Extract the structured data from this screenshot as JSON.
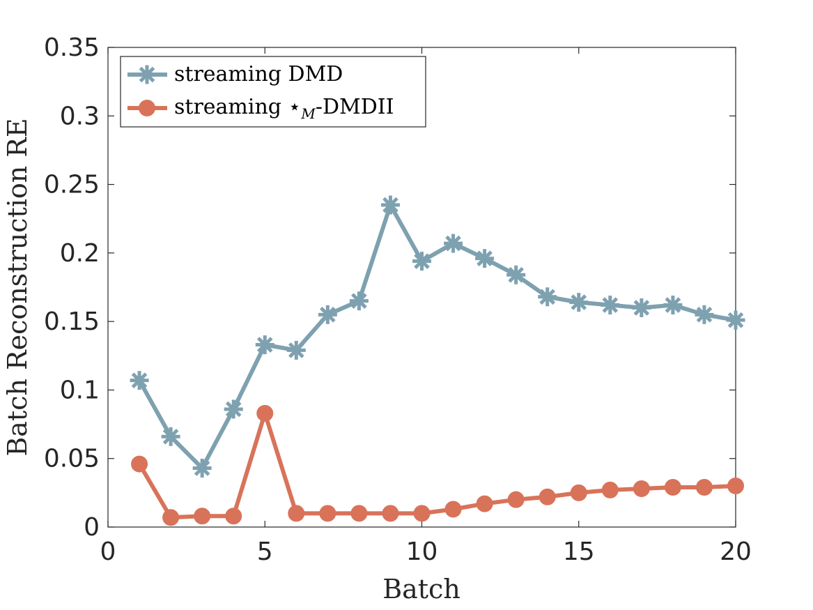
{
  "chart_data": {
    "type": "line",
    "title": "",
    "xlabel": "Batch",
    "ylabel": "Batch Reconstruction RE",
    "xlim": [
      0,
      20
    ],
    "ylim": [
      0,
      0.35
    ],
    "xticks": [
      0,
      5,
      10,
      15,
      20
    ],
    "xtick_labels": [
      "0",
      "5",
      "10",
      "15",
      "20"
    ],
    "yticks": [
      0,
      0.05,
      0.1,
      0.15,
      0.2,
      0.25,
      0.3,
      0.35
    ],
    "ytick_labels": [
      "0",
      "0.05",
      "0.1",
      "0.15",
      "0.2",
      "0.25",
      "0.3",
      "0.35"
    ],
    "grid": false,
    "legend_position": "top-left",
    "x": [
      1,
      2,
      3,
      4,
      5,
      6,
      7,
      8,
      9,
      10,
      11,
      12,
      13,
      14,
      15,
      16,
      17,
      18,
      19,
      20
    ],
    "series": [
      {
        "name": "streaming DMD",
        "legend_main": "streaming DMD",
        "legend_sub": "",
        "legend_after": "",
        "marker": "asterisk",
        "color": "#7ea1b0",
        "values": [
          0.107,
          0.066,
          0.043,
          0.086,
          0.133,
          0.129,
          0.155,
          0.165,
          0.235,
          0.194,
          0.207,
          0.196,
          0.184,
          0.168,
          0.164,
          0.162,
          0.16,
          0.162,
          0.155,
          0.151
        ]
      },
      {
        "name": "streaming ⋆M-DMDII",
        "legend_main": "streaming ⋆",
        "legend_sub": "M",
        "legend_after": "-DMDII",
        "marker": "circle",
        "color": "#d8735a",
        "values": [
          0.046,
          0.007,
          0.008,
          0.008,
          0.083,
          0.01,
          0.01,
          0.01,
          0.01,
          0.01,
          0.013,
          0.017,
          0.02,
          0.022,
          0.025,
          0.027,
          0.028,
          0.029,
          0.029,
          0.03
        ]
      }
    ]
  }
}
